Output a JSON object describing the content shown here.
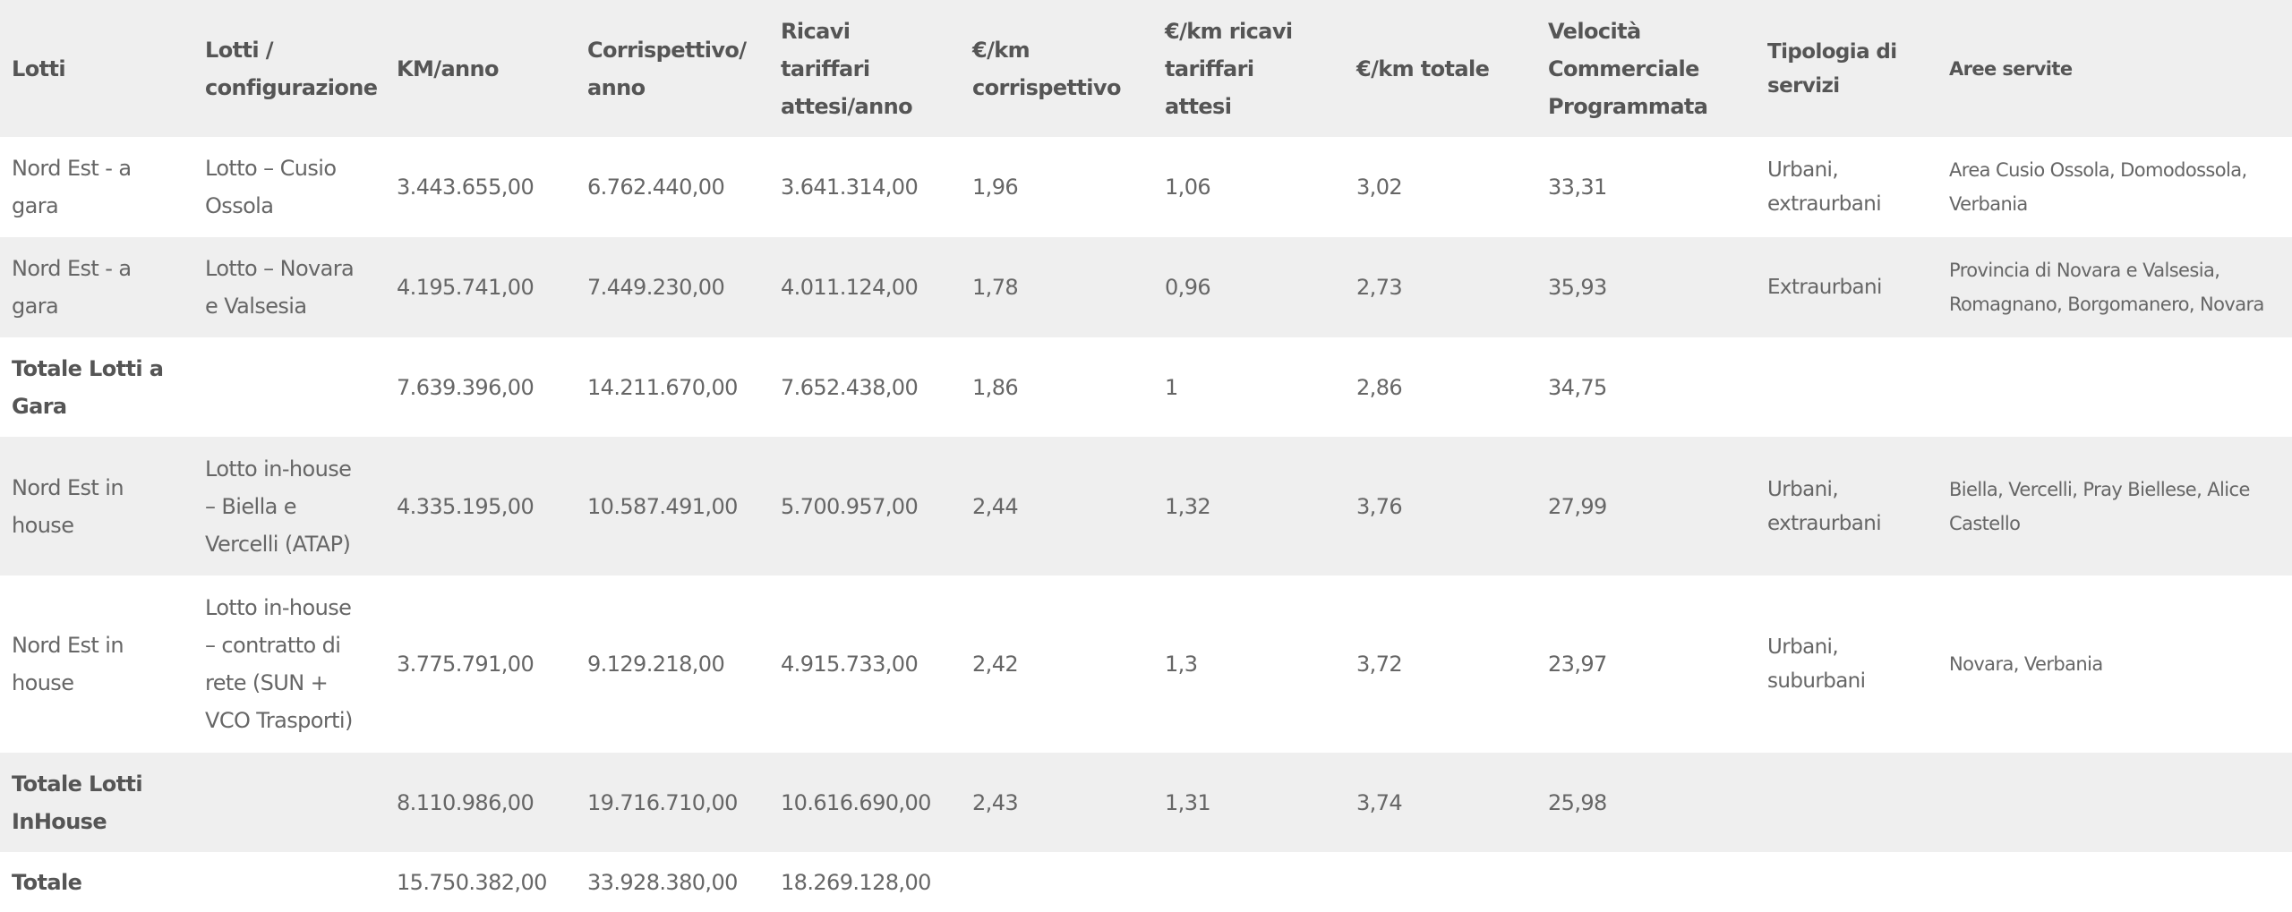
{
  "table": {
    "header": [
      "Lotti",
      "Lotti / configurazione",
      "KM/anno",
      "Corrispettivo/ anno",
      "Ricavi tariffari attesi/anno",
      "€/km corrispettivo",
      "€/km ricavi tariffari attesi",
      "€/km totale",
      "Velocità Commerciale Programmata",
      "Tipologia di servizi",
      "Aree servite"
    ],
    "rows": [
      [
        "Nord Est - a gara",
        "Lotto – Cusio Ossola",
        "3.443.655,00",
        "6.762.440,00",
        "3.641.314,00",
        "1,96",
        "1,06",
        "3,02",
        "33,31",
        "Urbani, extraurbani",
        "Area Cusio Ossola, Domodossola, Verbania"
      ],
      [
        "Nord Est - a gara",
        "Lotto – Novara e Valsesia",
        "4.195.741,00",
        "7.449.230,00",
        "4.011.124,00",
        "1,78",
        "0,96",
        "2,73",
        "35,93",
        "Extraurbani",
        "Provincia di Novara e Valsesia, Romagnano, Borgomanero, Novara"
      ],
      [
        "Totale Lotti a Gara",
        null,
        "7.639.396,00",
        "14.211.670,00",
        "7.652.438,00",
        "1,86",
        "1",
        "2,86",
        "34,75",
        null,
        null
      ],
      [
        "Nord Est in house",
        "Lotto in-house – Biella e Vercelli (ATAP)",
        "4.335.195,00",
        "10.587.491,00",
        "5.700.957,00",
        "2,44",
        "1,32",
        "3,76",
        "27,99",
        "Urbani, extraurbani",
        "Biella, Vercelli, Pray Biellese, Alice Castello"
      ],
      [
        "Nord Est in house",
        "Lotto in-house – contratto di rete (SUN + VCO Trasporti)",
        "3.775.791,00",
        "9.129.218,00",
        "4.915.733,00",
        "2,42",
        "1,3",
        "3,72",
        "23,97",
        "Urbani, suburbani",
        "Novara, Verbania"
      ],
      [
        "Totale Lotti InHouse",
        null,
        "8.110.986,00",
        "19.716.710,00",
        "10.616.690,00",
        "2,43",
        "1,31",
        "3,74",
        "25,98",
        null,
        null
      ],
      [
        "Totale",
        null,
        "15.750.382,00",
        "33.928.380,00",
        "18.269.128,00",
        null,
        null,
        null,
        null,
        null,
        null
      ]
    ]
  }
}
